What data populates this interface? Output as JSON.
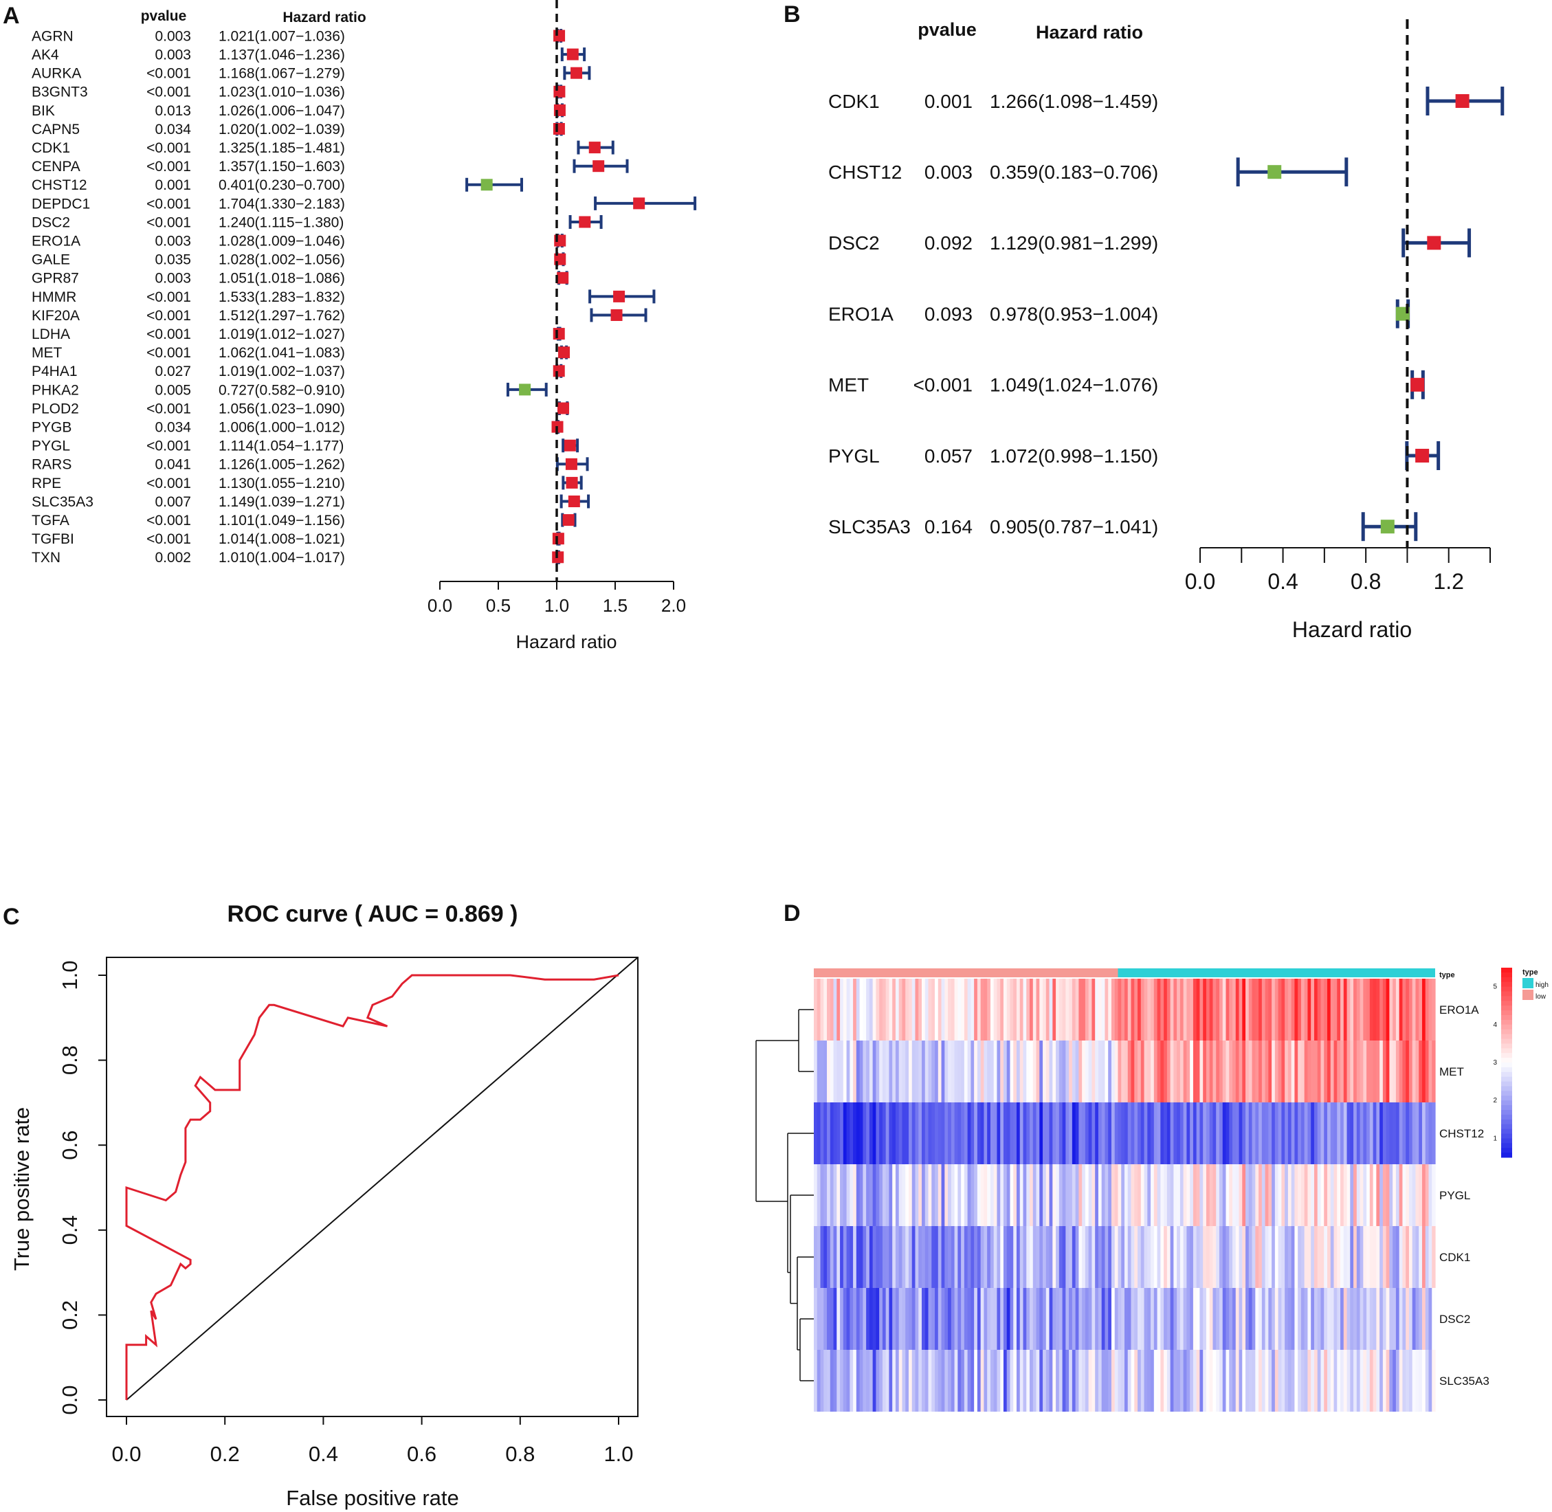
{
  "colors": {
    "risk": "#e0202f",
    "protective": "#7ab648",
    "ci": "#1f3a7a",
    "roc": "#e0202f",
    "high": "#2ed0d6",
    "low": "#f59a94"
  },
  "chart_data": [
    {
      "panel": "A",
      "type": "forest",
      "col_pvalue": "pvalue",
      "col_hr": "Hazard ratio",
      "xlabel": "Hazard ratio",
      "xticks": [
        0.0,
        0.5,
        1.0,
        1.5,
        2.0
      ],
      "xtick_labels": [
        "0.0",
        "0.5",
        "1.0",
        "1.5",
        "2.0"
      ],
      "xlim": [
        0.0,
        2.0
      ],
      "ref": 1.0,
      "rows": [
        {
          "gene": "AGRN",
          "p": "0.003",
          "hr_text": "1.021(1.007−1.036)",
          "hr": 1.021,
          "lo": 1.007,
          "hi": 1.036
        },
        {
          "gene": "AK4",
          "p": "0.003",
          "hr_text": "1.137(1.046−1.236)",
          "hr": 1.137,
          "lo": 1.046,
          "hi": 1.236
        },
        {
          "gene": "AURKA",
          "p": "<0.001",
          "hr_text": "1.168(1.067−1.279)",
          "hr": 1.168,
          "lo": 1.067,
          "hi": 1.279
        },
        {
          "gene": "B3GNT3",
          "p": "<0.001",
          "hr_text": "1.023(1.010−1.036)",
          "hr": 1.023,
          "lo": 1.01,
          "hi": 1.036
        },
        {
          "gene": "BIK",
          "p": "0.013",
          "hr_text": "1.026(1.006−1.047)",
          "hr": 1.026,
          "lo": 1.006,
          "hi": 1.047
        },
        {
          "gene": "CAPN5",
          "p": "0.034",
          "hr_text": "1.020(1.002−1.039)",
          "hr": 1.02,
          "lo": 1.002,
          "hi": 1.039
        },
        {
          "gene": "CDK1",
          "p": "<0.001",
          "hr_text": "1.325(1.185−1.481)",
          "hr": 1.325,
          "lo": 1.185,
          "hi": 1.481
        },
        {
          "gene": "CENPA",
          "p": "<0.001",
          "hr_text": "1.357(1.150−1.603)",
          "hr": 1.357,
          "lo": 1.15,
          "hi": 1.603
        },
        {
          "gene": "CHST12",
          "p": "0.001",
          "hr_text": "0.401(0.230−0.700)",
          "hr": 0.401,
          "lo": 0.23,
          "hi": 0.7
        },
        {
          "gene": "DEPDC1",
          "p": "<0.001",
          "hr_text": "1.704(1.330−2.183)",
          "hr": 1.704,
          "lo": 1.33,
          "hi": 2.183
        },
        {
          "gene": "DSC2",
          "p": "<0.001",
          "hr_text": "1.240(1.115−1.380)",
          "hr": 1.24,
          "lo": 1.115,
          "hi": 1.38
        },
        {
          "gene": "ERO1A",
          "p": "0.003",
          "hr_text": "1.028(1.009−1.046)",
          "hr": 1.028,
          "lo": 1.009,
          "hi": 1.046
        },
        {
          "gene": "GALE",
          "p": "0.035",
          "hr_text": "1.028(1.002−1.056)",
          "hr": 1.028,
          "lo": 1.002,
          "hi": 1.056
        },
        {
          "gene": "GPR87",
          "p": "0.003",
          "hr_text": "1.051(1.018−1.086)",
          "hr": 1.051,
          "lo": 1.018,
          "hi": 1.086
        },
        {
          "gene": "HMMR",
          "p": "<0.001",
          "hr_text": "1.533(1.283−1.832)",
          "hr": 1.533,
          "lo": 1.283,
          "hi": 1.832
        },
        {
          "gene": "KIF20A",
          "p": "<0.001",
          "hr_text": "1.512(1.297−1.762)",
          "hr": 1.512,
          "lo": 1.297,
          "hi": 1.762
        },
        {
          "gene": "LDHA",
          "p": "<0.001",
          "hr_text": "1.019(1.012−1.027)",
          "hr": 1.019,
          "lo": 1.012,
          "hi": 1.027
        },
        {
          "gene": "MET",
          "p": "<0.001",
          "hr_text": "1.062(1.041−1.083)",
          "hr": 1.062,
          "lo": 1.041,
          "hi": 1.083
        },
        {
          "gene": "P4HA1",
          "p": "0.027",
          "hr_text": "1.019(1.002−1.037)",
          "hr": 1.019,
          "lo": 1.002,
          "hi": 1.037
        },
        {
          "gene": "PHKA2",
          "p": "0.005",
          "hr_text": "0.727(0.582−0.910)",
          "hr": 0.727,
          "lo": 0.582,
          "hi": 0.91
        },
        {
          "gene": "PLOD2",
          "p": "<0.001",
          "hr_text": "1.056(1.023−1.090)",
          "hr": 1.056,
          "lo": 1.023,
          "hi": 1.09
        },
        {
          "gene": "PYGB",
          "p": "0.034",
          "hr_text": "1.006(1.000−1.012)",
          "hr": 1.006,
          "lo": 1.0,
          "hi": 1.012
        },
        {
          "gene": "PYGL",
          "p": "<0.001",
          "hr_text": "1.114(1.054−1.177)",
          "hr": 1.114,
          "lo": 1.054,
          "hi": 1.177
        },
        {
          "gene": "RARS",
          "p": "0.041",
          "hr_text": "1.126(1.005−1.262)",
          "hr": 1.126,
          "lo": 1.005,
          "hi": 1.262
        },
        {
          "gene": "RPE",
          "p": "<0.001",
          "hr_text": "1.130(1.055−1.210)",
          "hr": 1.13,
          "lo": 1.055,
          "hi": 1.21
        },
        {
          "gene": "SLC35A3",
          "p": "0.007",
          "hr_text": "1.149(1.039−1.271)",
          "hr": 1.149,
          "lo": 1.039,
          "hi": 1.271
        },
        {
          "gene": "TGFA",
          "p": "<0.001",
          "hr_text": "1.101(1.049−1.156)",
          "hr": 1.101,
          "lo": 1.049,
          "hi": 1.156
        },
        {
          "gene": "TGFBI",
          "p": "<0.001",
          "hr_text": "1.014(1.008−1.021)",
          "hr": 1.014,
          "lo": 1.008,
          "hi": 1.021
        },
        {
          "gene": "TXN",
          "p": "0.002",
          "hr_text": "1.010(1.004−1.017)",
          "hr": 1.01,
          "lo": 1.004,
          "hi": 1.017
        }
      ]
    },
    {
      "panel": "B",
      "type": "forest",
      "col_pvalue": "pvalue",
      "col_hr": "Hazard ratio",
      "xlabel": "Hazard ratio",
      "xticks": [
        0.0,
        0.2,
        0.4,
        0.6,
        0.8,
        1.0,
        1.2,
        1.4
      ],
      "xtick_labels": [
        "0.0",
        "0.4",
        "0.8",
        "1.2"
      ],
      "xtick_label_values": [
        0.0,
        0.4,
        0.8,
        1.2
      ],
      "xlim": [
        0.0,
        1.4
      ],
      "ref": 1.0,
      "rows": [
        {
          "gene": "CDK1",
          "p": "0.001",
          "hr_text": "1.266(1.098−1.459)",
          "hr": 1.266,
          "lo": 1.098,
          "hi": 1.459
        },
        {
          "gene": "CHST12",
          "p": "0.003",
          "hr_text": "0.359(0.183−0.706)",
          "hr": 0.359,
          "lo": 0.183,
          "hi": 0.706
        },
        {
          "gene": "DSC2",
          "p": "0.092",
          "hr_text": "1.129(0.981−1.299)",
          "hr": 1.129,
          "lo": 0.981,
          "hi": 1.299
        },
        {
          "gene": "ERO1A",
          "p": "0.093",
          "hr_text": "0.978(0.953−1.004)",
          "hr": 0.978,
          "lo": 0.953,
          "hi": 1.004
        },
        {
          "gene": "MET",
          "p": "<0.001",
          "hr_text": "1.049(1.024−1.076)",
          "hr": 1.049,
          "lo": 1.024,
          "hi": 1.076
        },
        {
          "gene": "PYGL",
          "p": "0.057",
          "hr_text": "1.072(0.998−1.150)",
          "hr": 1.072,
          "lo": 0.998,
          "hi": 1.15
        },
        {
          "gene": "SLC35A3",
          "p": "0.164",
          "hr_text": "0.905(0.787−1.041)",
          "hr": 0.905,
          "lo": 0.787,
          "hi": 1.041
        }
      ]
    },
    {
      "panel": "C",
      "type": "line",
      "title": "ROC curve ( AUC =  0.869 )",
      "xlabel": "False positive rate",
      "ylabel": "True positive rate",
      "xlim": [
        0.0,
        1.0
      ],
      "ylim": [
        0.0,
        1.0
      ],
      "xtick_labels": [
        "0.0",
        "0.2",
        "0.4",
        "0.6",
        "0.8",
        "1.0"
      ],
      "ytick_labels": [
        "0.0",
        "0.2",
        "0.4",
        "0.6",
        "0.8",
        "1.0"
      ],
      "x": [
        0,
        0,
        0.04,
        0.04,
        0.06,
        0.05,
        0.06,
        0.05,
        0.06,
        0.09,
        0.11,
        0.12,
        0.13,
        0.13,
        0.0,
        0.0,
        0.08,
        0.1,
        0.11,
        0.12,
        0.12,
        0.13,
        0.15,
        0.17,
        0.17,
        0.14,
        0.15,
        0.18,
        0.23,
        0.23,
        0.26,
        0.27,
        0.29,
        0.3,
        0.44,
        0.45,
        0.53,
        0.49,
        0.5,
        0.52,
        0.54,
        0.56,
        0.58,
        0.6,
        0.78,
        0.85,
        0.95,
        1.0
      ],
      "y": [
        0.0,
        0.13,
        0.13,
        0.15,
        0.13,
        0.21,
        0.19,
        0.23,
        0.25,
        0.27,
        0.32,
        0.31,
        0.32,
        0.33,
        0.41,
        0.5,
        0.47,
        0.49,
        0.53,
        0.56,
        0.64,
        0.66,
        0.66,
        0.68,
        0.7,
        0.74,
        0.76,
        0.73,
        0.73,
        0.8,
        0.86,
        0.9,
        0.93,
        0.93,
        0.88,
        0.9,
        0.88,
        0.9,
        0.93,
        0.94,
        0.95,
        0.98,
        1.0,
        1.0,
        1.0,
        0.99,
        0.99,
        1.0
      ]
    },
    {
      "panel": "D",
      "type": "heatmap",
      "rows": [
        "ERO1A",
        "MET",
        "CHST12",
        "PYGL",
        "CDK1",
        "DSC2",
        "SLC35A3"
      ],
      "annotation_label": "type",
      "groups": [
        {
          "name": "low",
          "fraction": 0.487
        },
        {
          "name": "high",
          "fraction": 0.513
        }
      ],
      "legend_type_title": "type",
      "legend_type_items": [
        "high",
        "low"
      ],
      "scale_ticks": [
        "1",
        "2",
        "3",
        "4",
        "5"
      ],
      "scale_range": [
        0.5,
        5.5
      ],
      "row_mean_low": [
        3.6,
        2.8,
        1.3,
        2.6,
        2.0,
        1.9,
        2.3
      ],
      "row_mean_high": [
        4.3,
        3.9,
        1.3,
        2.9,
        2.6,
        2.2,
        2.5
      ],
      "columns": 190
    }
  ]
}
